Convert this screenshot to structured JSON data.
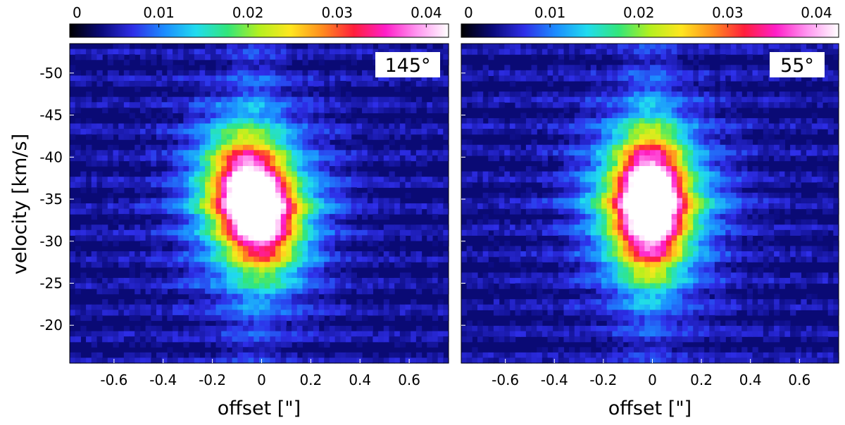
{
  "chart_data": [
    {
      "type": "heatmap",
      "panel_label": "145°",
      "xlabel": "offset [\"]",
      "ylabel": "velocity [km/s]",
      "xlim": [
        -0.78,
        0.76
      ],
      "ylim": [
        -53.5,
        -15.5
      ],
      "x_ticks": [
        -0.6,
        -0.4,
        -0.2,
        0,
        0.2,
        0.4,
        0.6
      ],
      "x_tick_labels": [
        "-0.6",
        "-0.4",
        "-0.2",
        "0",
        "0.2",
        "0.4",
        "0.6"
      ],
      "y_ticks": [
        -50,
        -45,
        -40,
        -35,
        -30,
        -25,
        -20
      ],
      "y_tick_labels": [
        "-50",
        "-45",
        "-40",
        "-35",
        "-30",
        "-25",
        "-20"
      ],
      "colorbar": {
        "min": 0,
        "max": 0.0425,
        "ticks": [
          0,
          0.01,
          0.02,
          0.03,
          0.04
        ],
        "tick_labels": [
          "0",
          "0.01",
          "0.02",
          "0.03",
          "0.04"
        ]
      },
      "features": {
        "peak_offset": -0.03,
        "peak_velocity": -34.5,
        "peak_value": 0.042,
        "core_tilt_deg": 35,
        "wing_velocity": -34.5,
        "wing_extent": [
          -0.28,
          0.34
        ]
      }
    },
    {
      "type": "heatmap",
      "panel_label": "55°",
      "xlabel": "offset [\"]",
      "ylabel": "",
      "xlim": [
        -0.78,
        0.76
      ],
      "ylim": [
        -53.5,
        -15.5
      ],
      "x_ticks": [
        -0.6,
        -0.4,
        -0.2,
        0,
        0.2,
        0.4,
        0.6
      ],
      "x_tick_labels": [
        "-0.6",
        "-0.4",
        "-0.2",
        "0",
        "0.2",
        "0.4",
        "0.6"
      ],
      "y_ticks": [
        -50,
        -45,
        -40,
        -35,
        -30,
        -25,
        -20
      ],
      "y_tick_labels": [],
      "colorbar": {
        "min": 0,
        "max": 0.0425,
        "ticks": [
          0,
          0.01,
          0.02,
          0.03,
          0.04
        ],
        "tick_labels": [
          "0",
          "0.01",
          "0.02",
          "0.03",
          "0.04"
        ]
      },
      "features": {
        "peak_offset": -0.01,
        "peak_velocity": -34.5,
        "peak_value": 0.042,
        "core_tilt_deg": 0,
        "wing_velocity": -34.5,
        "wing_extent": [
          -0.34,
          0.36
        ]
      }
    }
  ],
  "colormap": [
    "#000000",
    "#0a0a7a",
    "#2e2ee8",
    "#1c8cff",
    "#20dcef",
    "#32e67a",
    "#b4f01e",
    "#ffe61e",
    "#ff8c1e",
    "#ff1e3c",
    "#ff1ec8",
    "#ff96f0",
    "#ffffff"
  ]
}
